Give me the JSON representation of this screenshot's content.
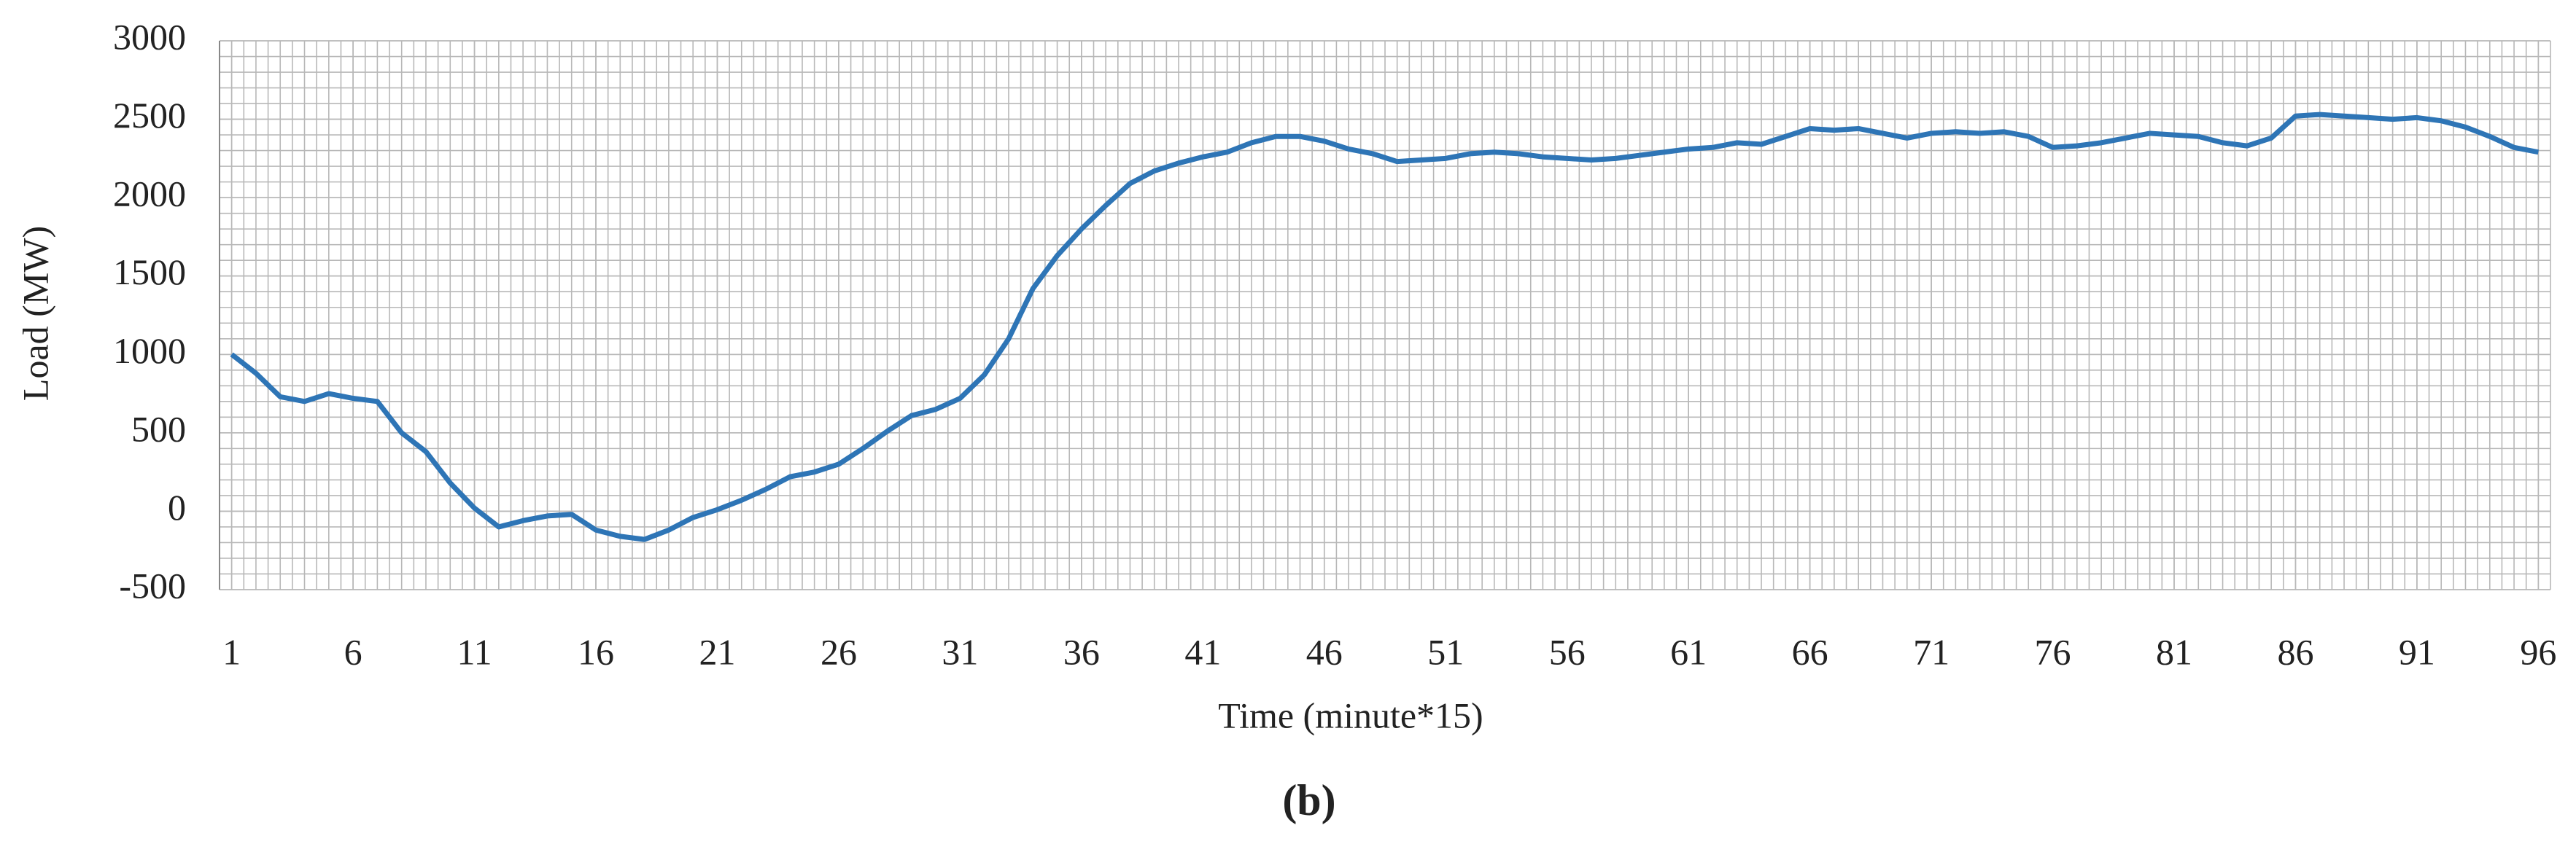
{
  "chart_data": {
    "type": "line",
    "x_label": "Time (minute*15)",
    "y_label": "Load (MW)",
    "caption": "(b)",
    "x": [
      1,
      2,
      3,
      4,
      5,
      6,
      7,
      8,
      9,
      10,
      11,
      12,
      13,
      14,
      15,
      16,
      17,
      18,
      19,
      20,
      21,
      22,
      23,
      24,
      25,
      26,
      27,
      28,
      29,
      30,
      31,
      32,
      33,
      34,
      35,
      36,
      37,
      38,
      39,
      40,
      41,
      42,
      43,
      44,
      45,
      46,
      47,
      48,
      49,
      50,
      51,
      52,
      53,
      54,
      55,
      56,
      57,
      58,
      59,
      60,
      61,
      62,
      63,
      64,
      65,
      66,
      67,
      68,
      69,
      70,
      71,
      72,
      73,
      74,
      75,
      76,
      77,
      78,
      79,
      80,
      81,
      82,
      83,
      84,
      85,
      86,
      87,
      88,
      89,
      90,
      91,
      92,
      93,
      94,
      95,
      96
    ],
    "series": [
      {
        "name": "Load",
        "color": "#2e75b6",
        "values": [
          1000,
          880,
          730,
          700,
          750,
          720,
          700,
          500,
          380,
          180,
          20,
          -100,
          -60,
          -30,
          -20,
          -120,
          -160,
          -180,
          -120,
          -40,
          10,
          70,
          140,
          220,
          250,
          300,
          400,
          510,
          610,
          650,
          720,
          870,
          1100,
          1420,
          1630,
          1800,
          1950,
          2090,
          2170,
          2220,
          2260,
          2290,
          2350,
          2390,
          2390,
          2360,
          2310,
          2280,
          2230,
          2240,
          2250,
          2280,
          2290,
          2280,
          2260,
          2250,
          2240,
          2250,
          2270,
          2290,
          2310,
          2320,
          2350,
          2340,
          2390,
          2440,
          2430,
          2440,
          2410,
          2380,
          2410,
          2420,
          2410,
          2420,
          2390,
          2320,
          2330,
          2350,
          2380,
          2410,
          2400,
          2390,
          2350,
          2330,
          2380,
          2520,
          2530,
          2520,
          2510,
          2500,
          2510,
          2490,
          2450,
          2390,
          2320,
          2290
        ]
      }
    ],
    "xlim": [
      0.5,
      96.5
    ],
    "xticks": [
      1,
      6,
      11,
      16,
      21,
      26,
      31,
      36,
      41,
      46,
      51,
      56,
      61,
      66,
      71,
      76,
      81,
      86,
      91,
      96
    ],
    "ylim": [
      -500,
      3000
    ],
    "yticks": [
      -500,
      0,
      500,
      1000,
      1500,
      2000,
      2500,
      3000
    ],
    "grid": true,
    "minor_grid": {
      "x_step": 0.5,
      "y_step": 100
    }
  }
}
